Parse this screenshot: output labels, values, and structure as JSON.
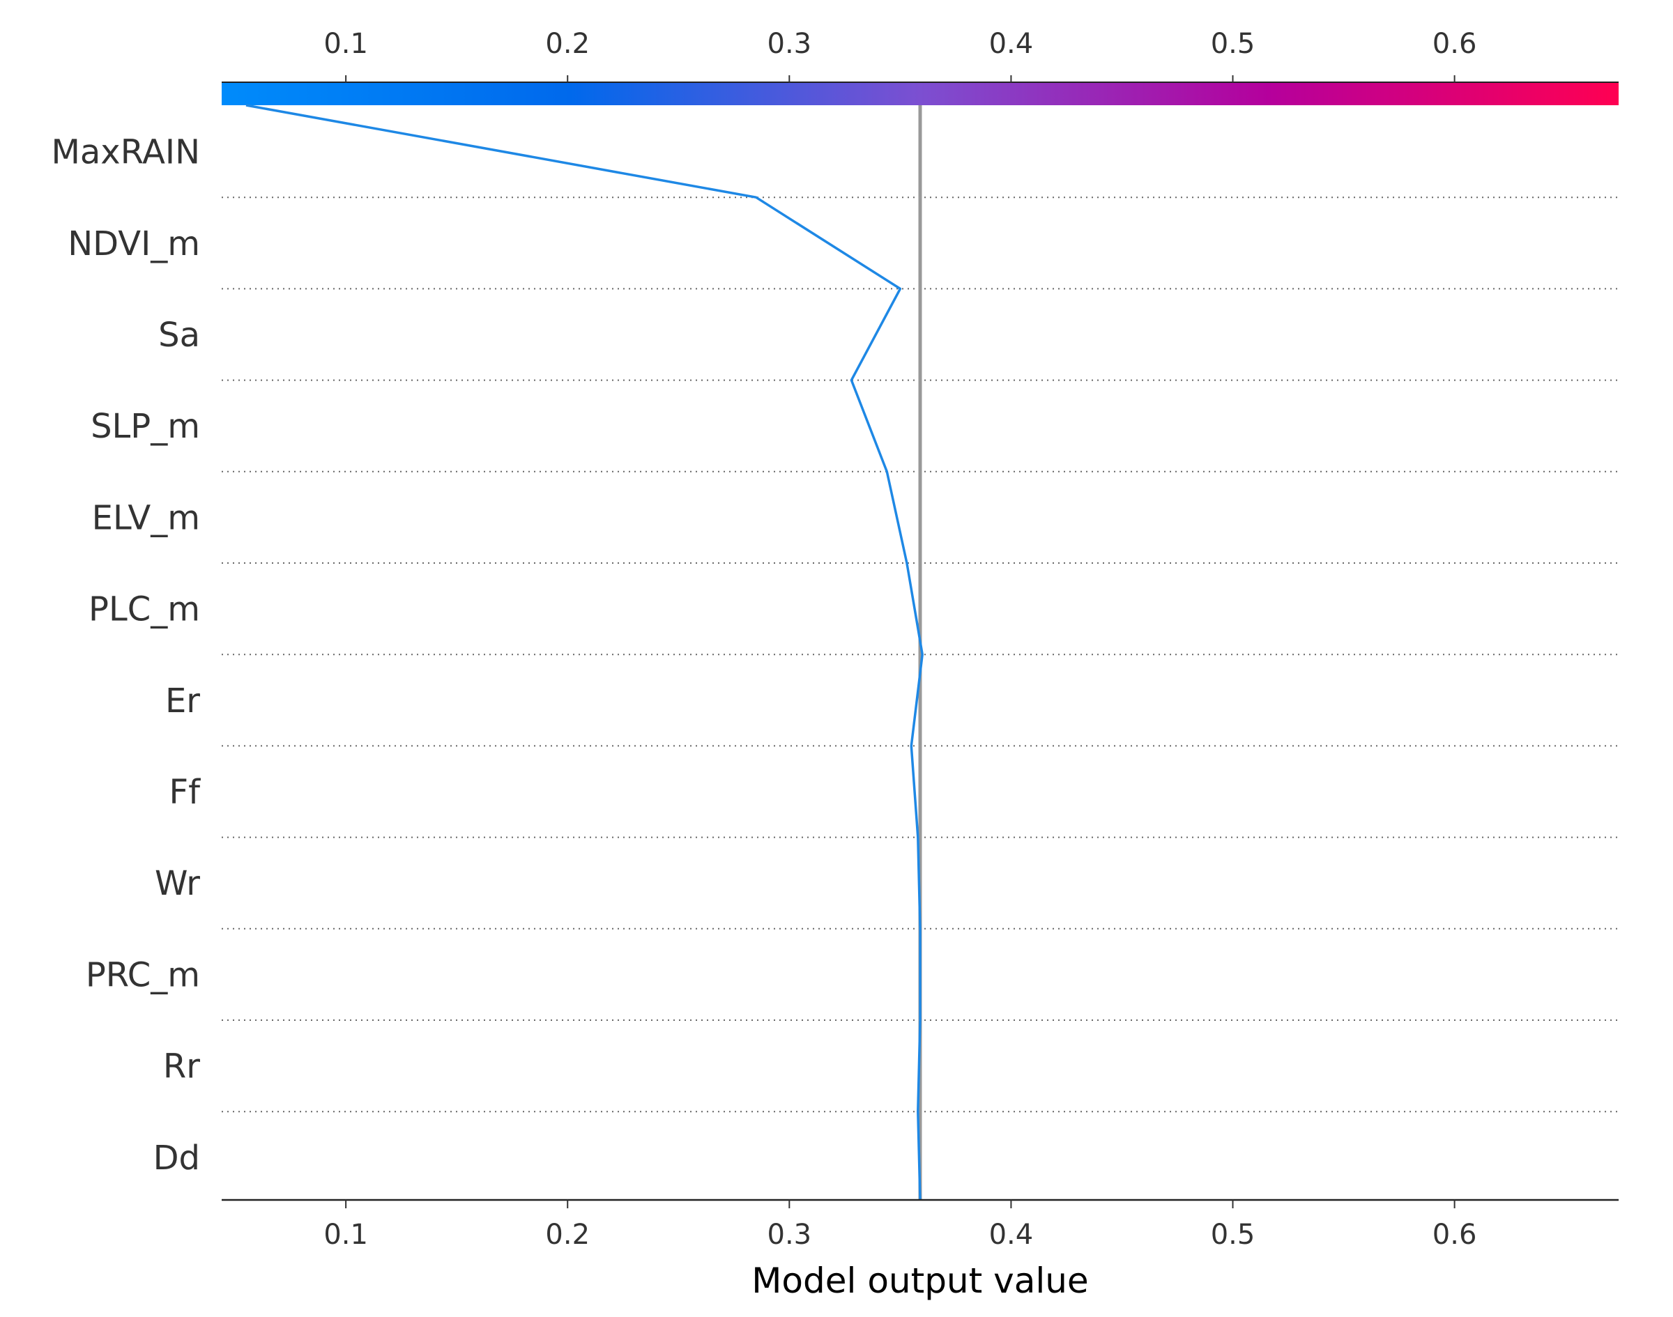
{
  "chart_data": {
    "type": "line",
    "subtype": "decision_plot",
    "title": "",
    "xlabel": "Model output value",
    "ylabel": "",
    "xlim": [
      0.044,
      0.674
    ],
    "xticks": [
      0.1,
      0.2,
      0.3,
      0.4,
      0.5,
      0.6
    ],
    "xtick_labels": [
      "0.1",
      "0.2",
      "0.3",
      "0.4",
      "0.5",
      "0.6"
    ],
    "expected_value": 0.359,
    "features": [
      "MaxRAIN",
      "NDVI_m",
      "Sa",
      "SLP_m",
      "ELV_m",
      "PLC_m",
      "Er",
      "Ff",
      "Wr",
      "PRC_m",
      "Rr",
      "Dd"
    ],
    "path": [
      0.055,
      0.285,
      0.35,
      0.328,
      0.344,
      0.353,
      0.36,
      0.355,
      0.358,
      0.359,
      0.359,
      0.358,
      0.359
    ],
    "colormap": [
      "#008bfb",
      "#0069ec",
      "#7c4fd1",
      "#b5009c",
      "#ff0052"
    ],
    "colors": {
      "line": "#1e88e5",
      "expected_line": "#999999",
      "grid": "#666666",
      "text": "#333333"
    },
    "grid": "dotted-horizontal",
    "legend": "none"
  }
}
